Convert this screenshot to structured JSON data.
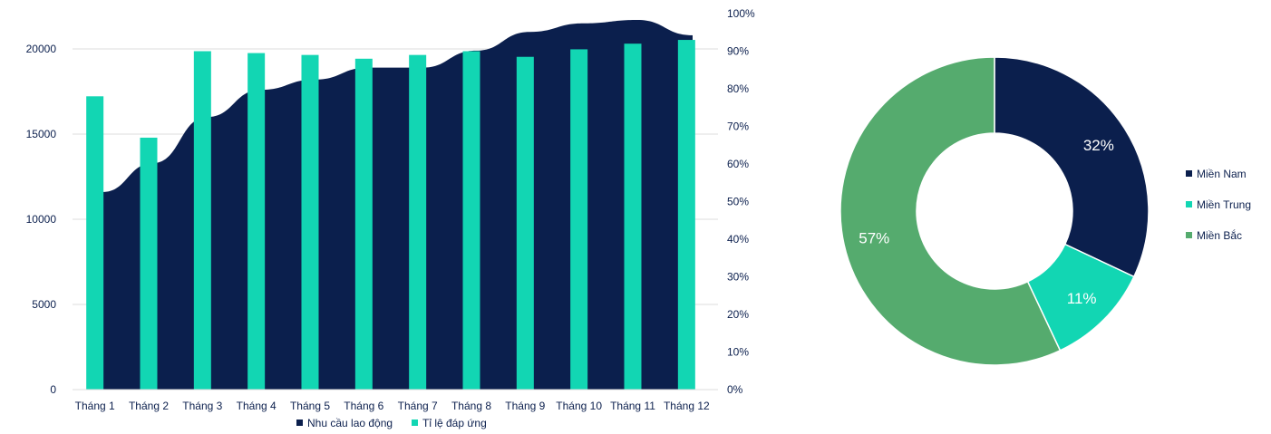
{
  "chart_data": [
    {
      "type": "bar+area",
      "title": "",
      "categories": [
        "Tháng 1",
        "Tháng 2",
        "Tháng 3",
        "Tháng 4",
        "Tháng 5",
        "Tháng 6",
        "Tháng 7",
        "Tháng 8",
        "Tháng 9",
        "Tháng 10",
        "Tháng 11",
        "Tháng 12"
      ],
      "series": [
        {
          "name": "Nhu cầu lao động",
          "kind": "area",
          "axis": "left",
          "color": "#0b1f4d",
          "values": [
            11600,
            13300,
            16000,
            17600,
            18200,
            18900,
            18900,
            19900,
            21000,
            21500,
            21700,
            20800
          ]
        },
        {
          "name": "Tỉ lệ đáp ứng",
          "kind": "bar",
          "axis": "right",
          "color": "#12d6b3",
          "values": [
            78,
            67,
            90,
            89.5,
            89,
            88,
            89,
            90,
            88.5,
            90.5,
            92,
            93
          ]
        }
      ],
      "yleft": {
        "ticks": [
          "0",
          "5000",
          "10000",
          "15000",
          "20000"
        ],
        "min": 0,
        "max": 22000
      },
      "yright": {
        "ticks": [
          "0%",
          "10%",
          "20%",
          "30%",
          "40%",
          "50%",
          "60%",
          "70%",
          "80%",
          "90%",
          "100%"
        ],
        "min": 0,
        "max": 100
      },
      "grid": true,
      "legend": "bottom"
    },
    {
      "type": "pie",
      "donut": true,
      "title": "",
      "labels": [
        "Miền Nam",
        "Miền Trung",
        "Miền Bắc"
      ],
      "values": [
        32,
        11,
        57
      ],
      "data_labels": [
        "32%",
        "11%",
        "57%"
      ],
      "colors": [
        "#0b1f4d",
        "#12d6b3",
        "#55ab6e"
      ],
      "legend": "right"
    }
  ]
}
